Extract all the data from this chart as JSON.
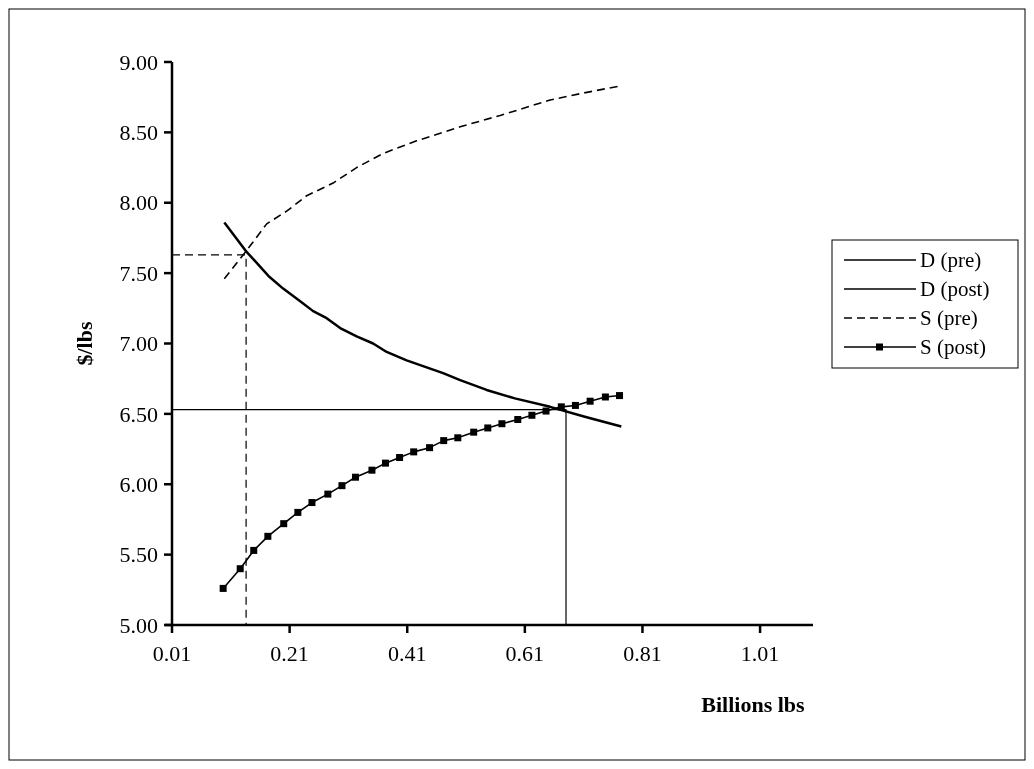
{
  "chart_data": {
    "type": "line",
    "xlabel": "Billions lbs",
    "ylabel": "$/lbs",
    "xlim": [
      0.01,
      1.1
    ],
    "ylim": [
      5,
      9
    ],
    "xticks": [
      0.01,
      0.21,
      0.41,
      0.61,
      0.81,
      1.01
    ],
    "yticks": [
      {
        "value": 5,
        "label": "5.00"
      },
      {
        "value": 5.5,
        "label": "5.50"
      },
      {
        "value": 6,
        "label": "6.00"
      },
      {
        "value": 6.5,
        "label": "6.50"
      },
      {
        "value": 7,
        "label": "7.00"
      },
      {
        "value": 7.5,
        "label": "7.50"
      },
      {
        "value": 8,
        "label": "8.00"
      },
      {
        "value": 8.5,
        "label": "8.50"
      },
      {
        "value": 9,
        "label": "9.00"
      }
    ],
    "legend": "right",
    "grid": false,
    "marker": "none",
    "series": [
      {
        "name": "D (pre)",
        "color": "#000000",
        "line_style": "solid",
        "x": [
          0.099,
          0.135,
          0.174,
          0.199,
          0.228,
          0.25,
          0.273,
          0.296,
          0.324,
          0.352,
          0.375,
          0.409,
          0.443,
          0.471,
          0.5,
          0.545,
          0.593,
          0.653,
          0.712,
          0.774
        ],
        "values": [
          7.86,
          7.66,
          7.48,
          7.39,
          7.3,
          7.23,
          7.18,
          7.11,
          7.05,
          7.0,
          6.94,
          6.88,
          6.83,
          6.79,
          6.74,
          6.67,
          6.61,
          6.55,
          6.48,
          6.41
        ]
      },
      {
        "name": "D (post)",
        "color": "#000000",
        "line_style": "solid"
      },
      {
        "name": "S (pre)",
        "color": "#000000",
        "line_style": "dashed",
        "x": [
          0.099,
          0.135,
          0.171,
          0.205,
          0.239,
          0.284,
          0.324,
          0.369,
          0.426,
          0.5,
          0.568,
          0.653,
          0.71,
          0.772
        ],
        "values": [
          7.46,
          7.65,
          7.85,
          7.94,
          8.05,
          8.14,
          8.25,
          8.35,
          8.44,
          8.54,
          8.62,
          8.73,
          8.78,
          8.83
        ]
      },
      {
        "name": "S (post)",
        "color": "#000000",
        "line_style": "solid",
        "marker": "square",
        "x": [
          0.097,
          0.126,
          0.149,
          0.173,
          0.2,
          0.224,
          0.248,
          0.275,
          0.299,
          0.322,
          0.35,
          0.373,
          0.397,
          0.421,
          0.448,
          0.472,
          0.496,
          0.523,
          0.547,
          0.571,
          0.598,
          0.622,
          0.646,
          0.672,
          0.696,
          0.721,
          0.747,
          0.771
        ],
        "values": [
          5.26,
          5.4,
          5.53,
          5.63,
          5.72,
          5.8,
          5.87,
          5.93,
          5.99,
          6.05,
          6.1,
          6.15,
          6.19,
          6.23,
          6.26,
          6.31,
          6.33,
          6.37,
          6.4,
          6.43,
          6.46,
          6.49,
          6.52,
          6.55,
          6.56,
          6.59,
          6.62,
          6.63
        ]
      },
      {
        "color": "#000000",
        "line_style": "dashed",
        "x": [
          0.01,
          0.136,
          0.136
        ],
        "values": [
          7.63,
          7.63,
          5
        ]
      },
      {
        "color": "#000000",
        "line_style": "solid",
        "x": [
          0.01,
          0.68,
          0.68
        ],
        "values": [
          6.53,
          6.53,
          5
        ]
      }
    ]
  }
}
